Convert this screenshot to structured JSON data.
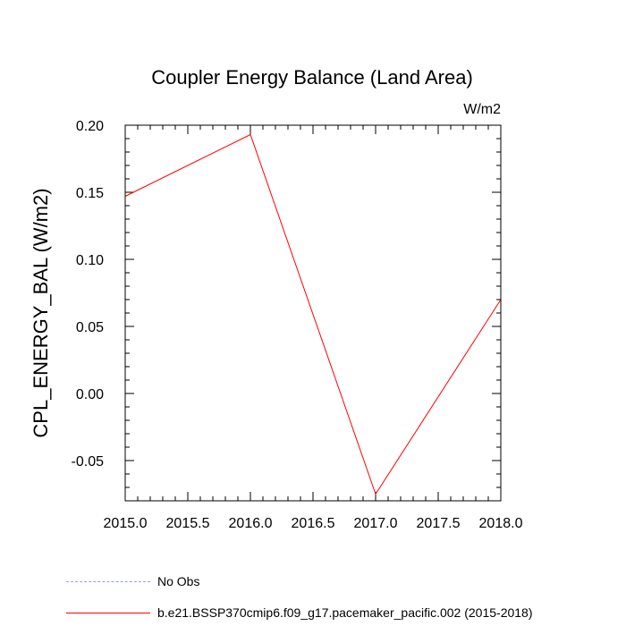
{
  "chart_data": {
    "type": "line",
    "title": "Coupler Energy Balance (Land Area)",
    "units_label": "W/m2",
    "xlabel": "",
    "ylabel": "CPL_ENERGY_BAL  (W/m2)",
    "xlim": [
      2015.0,
      2018.0
    ],
    "ylim": [
      -0.08,
      0.2
    ],
    "x_ticks": [
      "2015.0",
      "2015.5",
      "2016.0",
      "2016.5",
      "2017.0",
      "2017.5",
      "2018.0"
    ],
    "x_tick_values": [
      2015.0,
      2015.5,
      2016.0,
      2016.5,
      2017.0,
      2017.5,
      2018.0
    ],
    "y_ticks": [
      "0.20",
      "0.15",
      "0.10",
      "0.05",
      "0.00",
      "-0.05"
    ],
    "y_tick_values": [
      0.2,
      0.15,
      0.1,
      0.05,
      0.0,
      -0.05
    ],
    "series": [
      {
        "name": "b.e21.BSSP370cmip6.f09_g17.pacemaker_pacific.002 (2015-2018)",
        "color": "#ff0000",
        "style": "solid",
        "x": [
          2015.0,
          2016.0,
          2017.0,
          2018.0
        ],
        "values": [
          0.147,
          0.193,
          -0.075,
          0.07
        ]
      },
      {
        "name": "No Obs",
        "color": "#9999ff",
        "style": "dashed",
        "x": [],
        "values": []
      }
    ]
  },
  "legend": {
    "obs_label": "No Obs",
    "model_label": "b.e21.BSSP370cmip6.f09_g17.pacemaker_pacific.002 (2015-2018)"
  }
}
